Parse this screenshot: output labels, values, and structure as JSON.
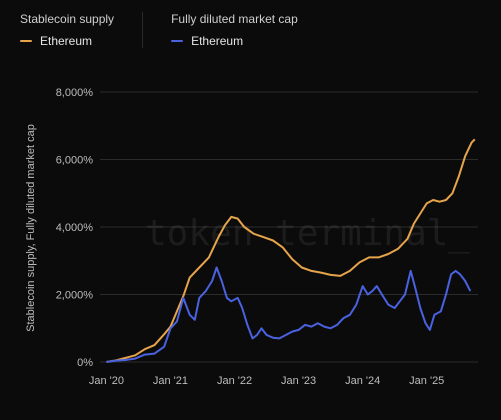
{
  "legend": {
    "groups": [
      {
        "title": "Stablecoin supply",
        "item": "Ethereum",
        "color": "#e6a44b"
      },
      {
        "title": "Fully diluted market cap",
        "item": "Ethereum",
        "color": "#4a62e0"
      }
    ]
  },
  "watermark": "token terminal_",
  "chart_data": {
    "type": "line",
    "ylabel": "Stablecoin supply, Fully diluted market cap",
    "ylim": [
      0,
      8000
    ],
    "xlim": [
      2019.9,
      2025.8
    ],
    "grid": true,
    "legend_position": "top-left",
    "y_ticks": [
      {
        "value": 0,
        "label": "0%"
      },
      {
        "value": 2000,
        "label": "2,000%"
      },
      {
        "value": 4000,
        "label": "4,000%"
      },
      {
        "value": 6000,
        "label": "6,000%"
      },
      {
        "value": 8000,
        "label": "8,000%"
      }
    ],
    "x_ticks": [
      {
        "value": 2020,
        "label": "Jan '20"
      },
      {
        "value": 2021,
        "label": "Jan '21"
      },
      {
        "value": 2022,
        "label": "Jan '22"
      },
      {
        "value": 2023,
        "label": "Jan '23"
      },
      {
        "value": 2024,
        "label": "Jan '24"
      },
      {
        "value": 2025,
        "label": "Jan '25"
      }
    ],
    "series": [
      {
        "name": "Stablecoin supply - Ethereum",
        "color": "#e6a44b",
        "points": [
          [
            2020.0,
            0
          ],
          [
            2020.15,
            50
          ],
          [
            2020.3,
            120
          ],
          [
            2020.45,
            200
          ],
          [
            2020.6,
            380
          ],
          [
            2020.75,
            500
          ],
          [
            2020.9,
            820
          ],
          [
            2021.0,
            1050
          ],
          [
            2021.1,
            1500
          ],
          [
            2021.2,
            1950
          ],
          [
            2021.3,
            2500
          ],
          [
            2021.45,
            2800
          ],
          [
            2021.6,
            3100
          ],
          [
            2021.75,
            3700
          ],
          [
            2021.85,
            4050
          ],
          [
            2021.95,
            4300
          ],
          [
            2022.05,
            4250
          ],
          [
            2022.15,
            4000
          ],
          [
            2022.3,
            3800
          ],
          [
            2022.45,
            3700
          ],
          [
            2022.6,
            3600
          ],
          [
            2022.75,
            3400
          ],
          [
            2022.9,
            3050
          ],
          [
            2023.05,
            2800
          ],
          [
            2023.2,
            2700
          ],
          [
            2023.35,
            2650
          ],
          [
            2023.5,
            2580
          ],
          [
            2023.65,
            2550
          ],
          [
            2023.8,
            2700
          ],
          [
            2023.95,
            2950
          ],
          [
            2024.1,
            3100
          ],
          [
            2024.25,
            3100
          ],
          [
            2024.4,
            3200
          ],
          [
            2024.55,
            3350
          ],
          [
            2024.7,
            3650
          ],
          [
            2024.8,
            4100
          ],
          [
            2024.9,
            4400
          ],
          [
            2025.0,
            4700
          ],
          [
            2025.1,
            4800
          ],
          [
            2025.2,
            4750
          ],
          [
            2025.3,
            4800
          ],
          [
            2025.4,
            5000
          ],
          [
            2025.5,
            5500
          ],
          [
            2025.6,
            6100
          ],
          [
            2025.7,
            6500
          ],
          [
            2025.75,
            6600
          ]
        ]
      },
      {
        "name": "Fully diluted market cap - Ethereum",
        "color": "#4a62e0",
        "points": [
          [
            2020.0,
            0
          ],
          [
            2020.15,
            40
          ],
          [
            2020.3,
            60
          ],
          [
            2020.45,
            100
          ],
          [
            2020.6,
            220
          ],
          [
            2020.75,
            250
          ],
          [
            2020.9,
            450
          ],
          [
            2021.0,
            1000
          ],
          [
            2021.1,
            1200
          ],
          [
            2021.2,
            1900
          ],
          [
            2021.3,
            1400
          ],
          [
            2021.38,
            1250
          ],
          [
            2021.45,
            1900
          ],
          [
            2021.55,
            2100
          ],
          [
            2021.65,
            2400
          ],
          [
            2021.72,
            2800
          ],
          [
            2021.8,
            2400
          ],
          [
            2021.88,
            1900
          ],
          [
            2021.95,
            1800
          ],
          [
            2022.05,
            1900
          ],
          [
            2022.12,
            1600
          ],
          [
            2022.2,
            1100
          ],
          [
            2022.28,
            700
          ],
          [
            2022.35,
            800
          ],
          [
            2022.42,
            1000
          ],
          [
            2022.5,
            800
          ],
          [
            2022.6,
            720
          ],
          [
            2022.7,
            700
          ],
          [
            2022.8,
            800
          ],
          [
            2022.9,
            900
          ],
          [
            2023.0,
            950
          ],
          [
            2023.1,
            1100
          ],
          [
            2023.2,
            1050
          ],
          [
            2023.3,
            1150
          ],
          [
            2023.4,
            1050
          ],
          [
            2023.5,
            1000
          ],
          [
            2023.6,
            1100
          ],
          [
            2023.7,
            1300
          ],
          [
            2023.8,
            1400
          ],
          [
            2023.9,
            1700
          ],
          [
            2024.0,
            2250
          ],
          [
            2024.08,
            2000
          ],
          [
            2024.15,
            2100
          ],
          [
            2024.22,
            2250
          ],
          [
            2024.3,
            2000
          ],
          [
            2024.4,
            1700
          ],
          [
            2024.5,
            1600
          ],
          [
            2024.58,
            1800
          ],
          [
            2024.66,
            2000
          ],
          [
            2024.75,
            2700
          ],
          [
            2024.82,
            2200
          ],
          [
            2024.9,
            1600
          ],
          [
            2024.98,
            1150
          ],
          [
            2025.05,
            950
          ],
          [
            2025.12,
            1400
          ],
          [
            2025.22,
            1500
          ],
          [
            2025.3,
            2000
          ],
          [
            2025.38,
            2600
          ],
          [
            2025.45,
            2700
          ],
          [
            2025.52,
            2600
          ],
          [
            2025.6,
            2400
          ],
          [
            2025.68,
            2100
          ]
        ]
      }
    ]
  }
}
